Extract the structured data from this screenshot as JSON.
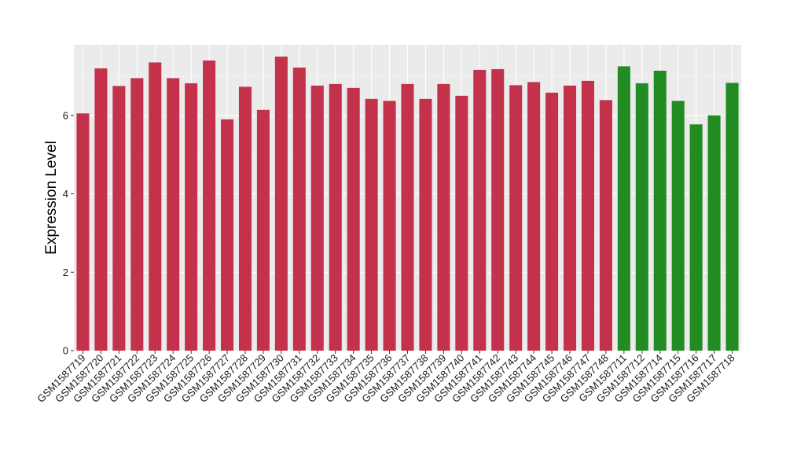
{
  "chart_data": {
    "type": "bar",
    "title": "",
    "xlabel": "",
    "ylabel": "Expression Level",
    "ylim": [
      0,
      7.8
    ],
    "yticks": [
      0,
      2,
      4,
      6
    ],
    "grid": true,
    "legend": "none",
    "colors": {
      "panel_background": "#EBEBEB",
      "grid_major": "#FFFFFF",
      "group_a": "#C4314B",
      "group_b": "#228B22"
    },
    "categories": [
      "GSM1587719",
      "GSM1587720",
      "GSM1587721",
      "GSM1587722",
      "GSM1587723",
      "GSM1587724",
      "GSM1587725",
      "GSM1587726",
      "GSM1587727",
      "GSM1587728",
      "GSM1587729",
      "GSM1587730",
      "GSM1587731",
      "GSM1587732",
      "GSM1587733",
      "GSM1587734",
      "GSM1587735",
      "GSM1587736",
      "GSM1587737",
      "GSM1587738",
      "GSM1587739",
      "GSM1587740",
      "GSM1587741",
      "GSM1587742",
      "GSM1587743",
      "GSM1587744",
      "GSM1587745",
      "GSM1587746",
      "GSM1587747",
      "GSM1587748",
      "GSM1587711",
      "GSM1587712",
      "GSM1587714",
      "GSM1587715",
      "GSM1587716",
      "GSM1587717",
      "GSM1587718"
    ],
    "values": [
      6.05,
      7.2,
      6.75,
      6.95,
      7.35,
      6.95,
      6.82,
      7.4,
      5.9,
      6.73,
      6.14,
      7.5,
      7.22,
      6.76,
      6.8,
      6.7,
      6.42,
      6.37,
      6.8,
      6.42,
      6.8,
      6.5,
      7.16,
      7.18,
      6.77,
      6.85,
      6.58,
      6.76,
      6.88,
      6.39,
      7.25,
      6.82,
      7.14,
      6.37,
      5.77,
      6.0,
      6.83
    ],
    "groups": [
      "a",
      "a",
      "a",
      "a",
      "a",
      "a",
      "a",
      "a",
      "a",
      "a",
      "a",
      "a",
      "a",
      "a",
      "a",
      "a",
      "a",
      "a",
      "a",
      "a",
      "a",
      "a",
      "a",
      "a",
      "a",
      "a",
      "a",
      "a",
      "a",
      "a",
      "b",
      "b",
      "b",
      "b",
      "b",
      "b",
      "b"
    ]
  }
}
